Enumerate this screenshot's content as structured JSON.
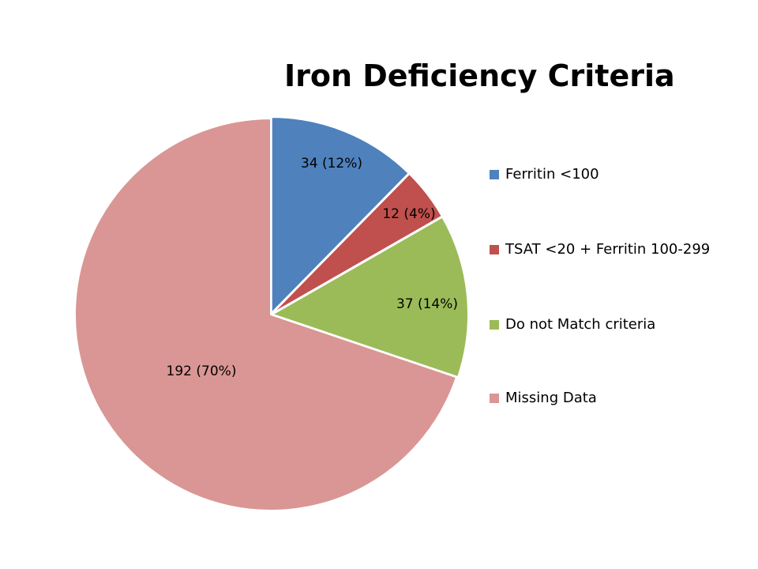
{
  "chart_data": {
    "type": "pie",
    "title": "Iron Deficiency Criteria",
    "slices": [
      {
        "name": "Ferritin <100",
        "value": 34,
        "percent": "12%",
        "label": "34 (12%)",
        "color": "#4F81BD"
      },
      {
        "name": "TSAT <20 + Ferritin 100-299",
        "value": 12,
        "percent": "4%",
        "label": "12 (4%)",
        "color": "#C0504D"
      },
      {
        "name": "Do not Match criteria",
        "value": 37,
        "percent": "14%",
        "label": "37 (14%)",
        "color": "#9BBB59"
      },
      {
        "name": "Missing Data",
        "value": 192,
        "percent": "70%",
        "label": "192 (70%)",
        "color": "#D99694"
      }
    ],
    "start_angle": "12 o'clock",
    "direction": "clockwise",
    "legend_position": "right"
  }
}
